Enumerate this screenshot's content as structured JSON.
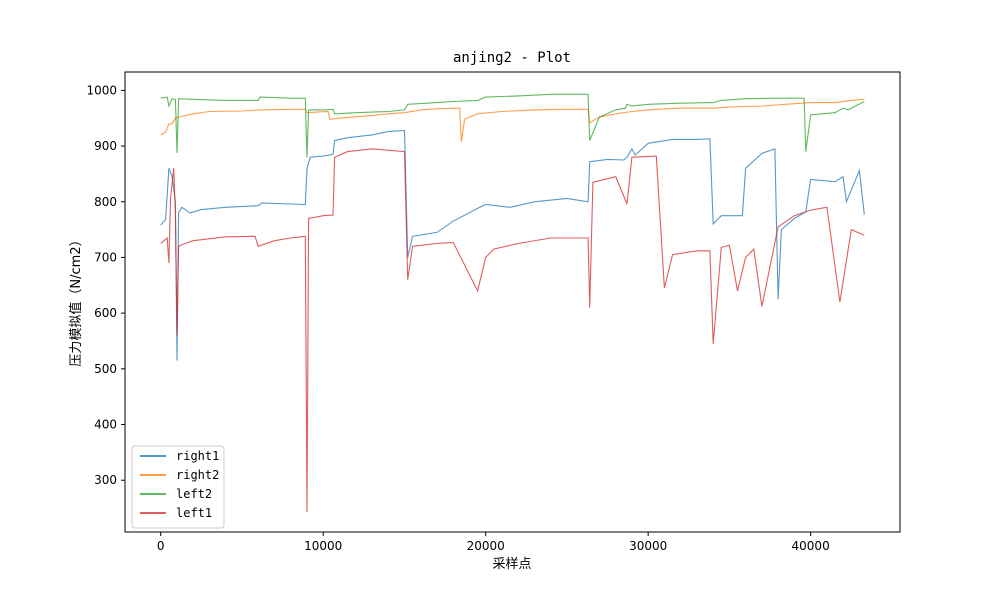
{
  "chart_data": {
    "type": "line",
    "title": "anjing2 - Plot",
    "xlabel": "采样点",
    "ylabel": "压力模拟值（N/cm2）",
    "xlim": [
      -2200,
      45500
    ],
    "ylim": [
      207,
      1033
    ],
    "x_ticks": [
      0,
      10000,
      20000,
      30000,
      40000
    ],
    "y_ticks": [
      300,
      400,
      500,
      600,
      700,
      800,
      900,
      1000
    ],
    "x_tick_labels": [
      "0",
      "10000",
      "20000",
      "30000",
      "40000"
    ],
    "y_tick_labels": [
      "300",
      "400",
      "500",
      "600",
      "700",
      "800",
      "900",
      "1000"
    ],
    "grid": false,
    "legend_position": "lower-left",
    "series": [
      {
        "name": "right1",
        "color": "#1f77b4",
        "points": [
          [
            0,
            758
          ],
          [
            300,
            768
          ],
          [
            500,
            860
          ],
          [
            700,
            845
          ],
          [
            900,
            800
          ],
          [
            1000,
            515
          ],
          [
            1100,
            780
          ],
          [
            1300,
            790
          ],
          [
            1800,
            780
          ],
          [
            2500,
            786
          ],
          [
            4000,
            790
          ],
          [
            6000,
            793
          ],
          [
            6200,
            798
          ],
          [
            8000,
            796
          ],
          [
            8900,
            795
          ],
          [
            9000,
            860
          ],
          [
            9200,
            880
          ],
          [
            10000,
            882
          ],
          [
            10600,
            885
          ],
          [
            10700,
            910
          ],
          [
            11500,
            915
          ],
          [
            13000,
            920
          ],
          [
            14000,
            926
          ],
          [
            15000,
            928
          ],
          [
            15200,
            700
          ],
          [
            15500,
            738
          ],
          [
            17000,
            745
          ],
          [
            18000,
            765
          ],
          [
            19500,
            788
          ],
          [
            20000,
            795
          ],
          [
            21500,
            790
          ],
          [
            23000,
            800
          ],
          [
            25000,
            806
          ],
          [
            26300,
            800
          ],
          [
            26400,
            872
          ],
          [
            27500,
            876
          ],
          [
            28500,
            875
          ],
          [
            28700,
            880
          ],
          [
            29000,
            895
          ],
          [
            29200,
            884
          ],
          [
            30000,
            905
          ],
          [
            31500,
            912
          ],
          [
            33000,
            912
          ],
          [
            33800,
            913
          ],
          [
            34000,
            760
          ],
          [
            34500,
            775
          ],
          [
            35000,
            775
          ],
          [
            35800,
            775
          ],
          [
            36000,
            860
          ],
          [
            37000,
            887
          ],
          [
            37800,
            895
          ],
          [
            38000,
            625
          ],
          [
            38200,
            750
          ],
          [
            39000,
            770
          ],
          [
            39700,
            782
          ],
          [
            40000,
            840
          ],
          [
            41500,
            836
          ],
          [
            42000,
            845
          ],
          [
            42200,
            800
          ],
          [
            43000,
            856
          ],
          [
            43300,
            777
          ]
        ]
      },
      {
        "name": "right2",
        "color": "#ff7f0e",
        "points": [
          [
            0,
            920
          ],
          [
            300,
            925
          ],
          [
            500,
            940
          ],
          [
            700,
            940
          ],
          [
            900,
            950
          ],
          [
            1100,
            952
          ],
          [
            2000,
            958
          ],
          [
            3000,
            962
          ],
          [
            5000,
            963
          ],
          [
            6000,
            965
          ],
          [
            8000,
            966
          ],
          [
            8900,
            966
          ],
          [
            9000,
            960
          ],
          [
            10300,
            962
          ],
          [
            10400,
            948
          ],
          [
            11000,
            950
          ],
          [
            13000,
            955
          ],
          [
            14000,
            958
          ],
          [
            15000,
            960
          ],
          [
            16000,
            965
          ],
          [
            17000,
            967
          ],
          [
            18000,
            968
          ],
          [
            18400,
            968
          ],
          [
            18500,
            908
          ],
          [
            18700,
            948
          ],
          [
            19500,
            958
          ],
          [
            21000,
            962
          ],
          [
            23000,
            965
          ],
          [
            25000,
            966
          ],
          [
            26300,
            966
          ],
          [
            26400,
            942
          ],
          [
            27000,
            952
          ],
          [
            28000,
            958
          ],
          [
            29000,
            962
          ],
          [
            30500,
            966
          ],
          [
            32000,
            968
          ],
          [
            34000,
            968
          ],
          [
            35000,
            970
          ],
          [
            37000,
            972
          ],
          [
            39000,
            976
          ],
          [
            40000,
            978
          ],
          [
            41500,
            978
          ],
          [
            42500,
            982
          ],
          [
            43300,
            984
          ]
        ]
      },
      {
        "name": "left2",
        "color": "#2ca02c",
        "points": [
          [
            0,
            986
          ],
          [
            400,
            988
          ],
          [
            500,
            972
          ],
          [
            700,
            985
          ],
          [
            900,
            984
          ],
          [
            1000,
            888
          ],
          [
            1100,
            985
          ],
          [
            2000,
            984
          ],
          [
            4000,
            982
          ],
          [
            6000,
            982
          ],
          [
            6100,
            988
          ],
          [
            8000,
            986
          ],
          [
            8900,
            986
          ],
          [
            9000,
            880
          ],
          [
            9100,
            965
          ],
          [
            10000,
            965
          ],
          [
            10600,
            966
          ],
          [
            10700,
            958
          ],
          [
            12000,
            960
          ],
          [
            14000,
            962
          ],
          [
            15000,
            965
          ],
          [
            15200,
            975
          ],
          [
            17000,
            978
          ],
          [
            18000,
            980
          ],
          [
            19500,
            982
          ],
          [
            20000,
            988
          ],
          [
            22000,
            990
          ],
          [
            24000,
            993
          ],
          [
            26300,
            993
          ],
          [
            26400,
            910
          ],
          [
            27000,
            952
          ],
          [
            28000,
            965
          ],
          [
            28600,
            968
          ],
          [
            28700,
            975
          ],
          [
            29000,
            972
          ],
          [
            30000,
            975
          ],
          [
            32000,
            977
          ],
          [
            34000,
            978
          ],
          [
            34500,
            982
          ],
          [
            36000,
            985
          ],
          [
            38000,
            986
          ],
          [
            39600,
            986
          ],
          [
            39700,
            890
          ],
          [
            40000,
            956
          ],
          [
            41500,
            960
          ],
          [
            42000,
            968
          ],
          [
            42300,
            965
          ],
          [
            43300,
            980
          ]
        ]
      },
      {
        "name": "left1",
        "color": "#d62728",
        "points": [
          [
            0,
            725
          ],
          [
            400,
            735
          ],
          [
            500,
            690
          ],
          [
            600,
            805
          ],
          [
            800,
            860
          ],
          [
            900,
            780
          ],
          [
            1000,
            560
          ],
          [
            1100,
            720
          ],
          [
            1500,
            725
          ],
          [
            2000,
            730
          ],
          [
            4000,
            737
          ],
          [
            5800,
            738
          ],
          [
            6000,
            720
          ],
          [
            7000,
            730
          ],
          [
            8000,
            735
          ],
          [
            8900,
            738
          ],
          [
            9000,
            243
          ],
          [
            9100,
            770
          ],
          [
            10000,
            775
          ],
          [
            10600,
            776
          ],
          [
            10700,
            880
          ],
          [
            11500,
            890
          ],
          [
            13000,
            895
          ],
          [
            15000,
            890
          ],
          [
            15200,
            660
          ],
          [
            15500,
            720
          ],
          [
            17000,
            725
          ],
          [
            18000,
            727
          ],
          [
            19500,
            640
          ],
          [
            20000,
            700
          ],
          [
            20500,
            715
          ],
          [
            22000,
            725
          ],
          [
            24000,
            735
          ],
          [
            26300,
            735
          ],
          [
            26400,
            610
          ],
          [
            26600,
            835
          ],
          [
            28000,
            845
          ],
          [
            28700,
            796
          ],
          [
            29000,
            880
          ],
          [
            30500,
            882
          ],
          [
            31000,
            645
          ],
          [
            31500,
            705
          ],
          [
            33000,
            712
          ],
          [
            33800,
            712
          ],
          [
            34000,
            545
          ],
          [
            34500,
            718
          ],
          [
            35000,
            722
          ],
          [
            35500,
            640
          ],
          [
            36000,
            700
          ],
          [
            36500,
            715
          ],
          [
            37000,
            612
          ],
          [
            38000,
            755
          ],
          [
            39000,
            775
          ],
          [
            40000,
            785
          ],
          [
            41000,
            790
          ],
          [
            41800,
            620
          ],
          [
            42500,
            750
          ],
          [
            43300,
            740
          ]
        ]
      }
    ]
  }
}
